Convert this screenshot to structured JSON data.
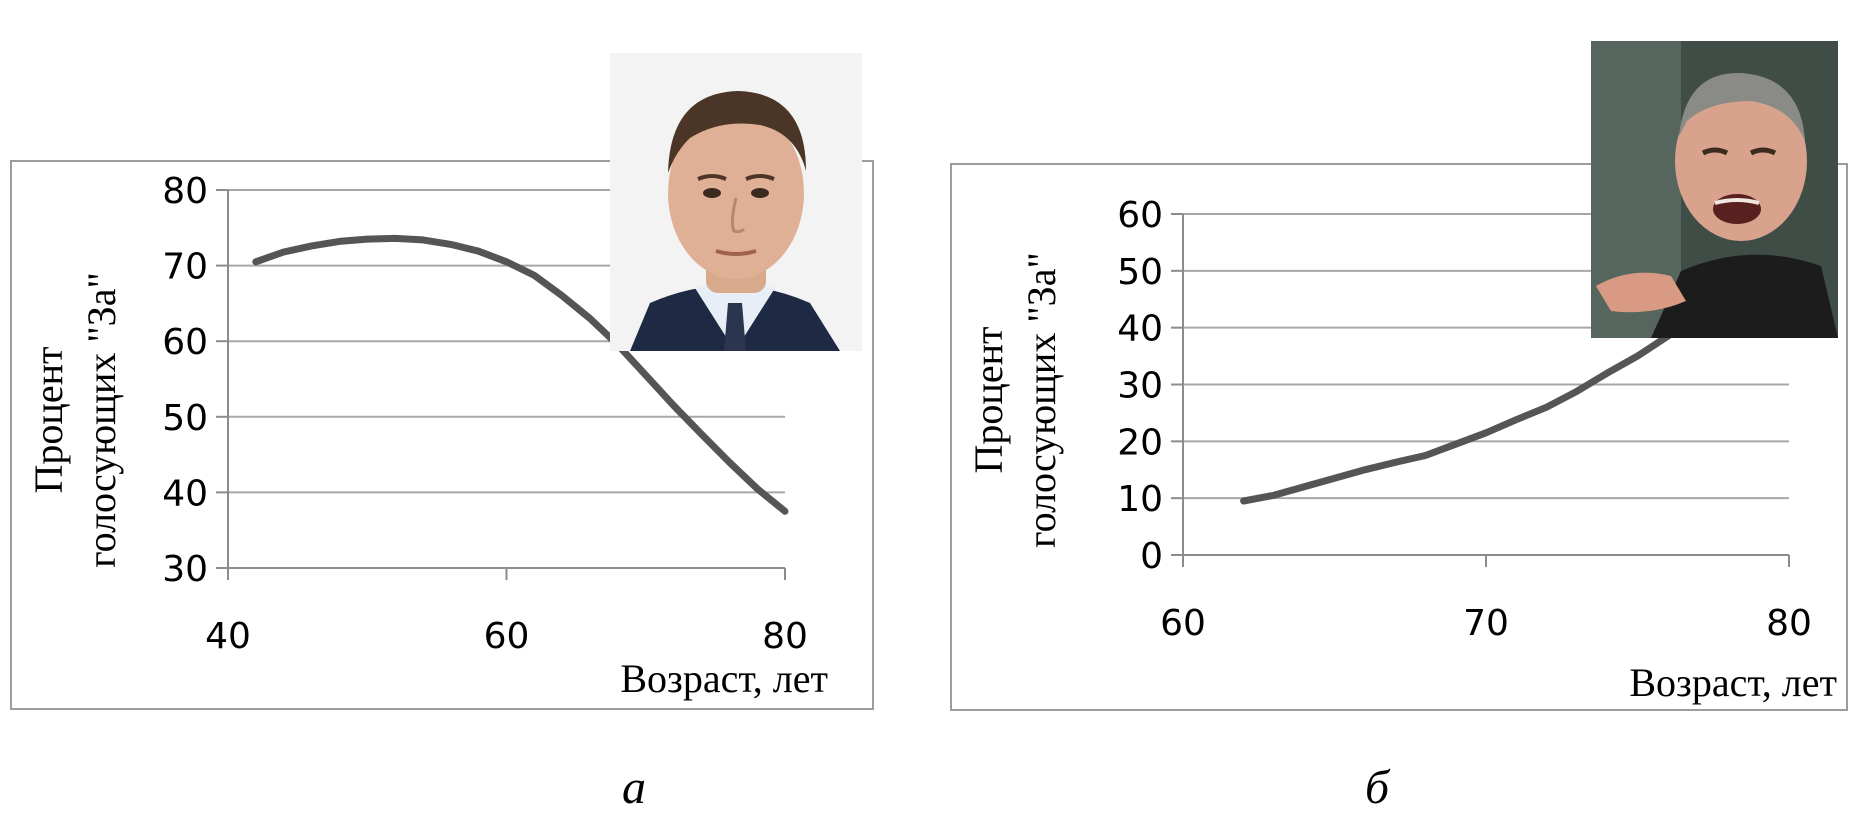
{
  "chart_data": [
    {
      "type": "line",
      "title": "",
      "xlabel": "Возраст, лет",
      "ylabel_lines": [
        "Процент",
        "голосующих \"За\""
      ],
      "xlim": [
        40,
        80
      ],
      "ylim": [
        30,
        80
      ],
      "xticks": [
        40,
        60,
        80
      ],
      "yticks": [
        30,
        40,
        50,
        60,
        70,
        80
      ],
      "grid": true,
      "series": [
        {
          "x": [
            42,
            44,
            46,
            48,
            50,
            52,
            54,
            56,
            58,
            60,
            62,
            64,
            66,
            68,
            70,
            72,
            74,
            76,
            78,
            80
          ],
          "y": [
            70.5,
            71.8,
            72.6,
            73.2,
            73.5,
            73.6,
            73.4,
            72.8,
            71.9,
            70.5,
            68.7,
            66.0,
            63.0,
            59.5,
            55.5,
            51.5,
            47.7,
            44.0,
            40.5,
            37.5
          ]
        }
      ],
      "caption": "а",
      "color": "#555555"
    },
    {
      "type": "line",
      "title": "",
      "xlabel": "Возраст, лет",
      "ylabel_lines": [
        "Процент",
        "голосующих \"За\""
      ],
      "xlim": [
        60,
        80
      ],
      "ylim": [
        0,
        60
      ],
      "xticks": [
        60,
        70,
        80
      ],
      "yticks": [
        0,
        10,
        20,
        30,
        40,
        50,
        60
      ],
      "grid": true,
      "series": [
        {
          "x": [
            62,
            63,
            64,
            65,
            66,
            67,
            68,
            69,
            70,
            71,
            72,
            73,
            74,
            75,
            76,
            77
          ],
          "y": [
            9.5,
            10.5,
            12.0,
            13.5,
            15.0,
            16.3,
            17.5,
            19.5,
            21.5,
            23.8,
            26.0,
            28.8,
            32.0,
            35.0,
            38.5,
            42.0
          ]
        }
      ],
      "caption": "б",
      "color": "#555555"
    }
  ],
  "portraits": [
    {
      "name": "portrait-photo-a"
    },
    {
      "name": "portrait-photo-b"
    }
  ]
}
